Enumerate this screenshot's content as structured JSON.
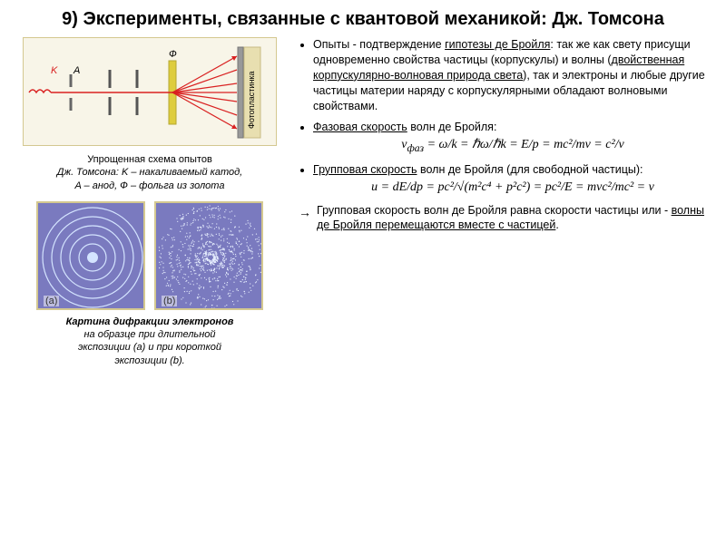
{
  "title": "9) Эксперименты, связанные с квантовой механикой: Дж. Томсона",
  "left": {
    "caption1_a": "Упрощенная схема опытов",
    "caption1_b": "Дж. Томсона: K – накаливаемый катод,",
    "caption1_c": "A – анод, Ф – фольга из золота",
    "caption2_a": "Картина дифракции электронов",
    "caption2_b": "на образце при длительной",
    "caption2_c": "экспозиции (a) и при короткой",
    "caption2_d": "экспозиции (b).",
    "pattern_a": "(a)",
    "pattern_b": "(b)",
    "schematic": {
      "label_K": "K",
      "label_A": "A",
      "label_F": "Ф",
      "label_plate": "Фотопластинка",
      "bg_color": "#f8f5e8",
      "beam_color": "#d92121",
      "slit_color": "#666666",
      "foil_color": "#decd3e"
    },
    "pattern_bg": "#7a7abf",
    "ring_color": "#d4e4ff",
    "dot_color": "#e8f0ff"
  },
  "bullets": {
    "b1_pre": "Опыты - подтверждение ",
    "b1_u1": "гипотезы де Бройля",
    "b1_mid1": ": так же как свету присущи одновременно свойства частицы (корпускулы) и волны (",
    "b1_u2": "двойственная корпускулярно-волновая природа света",
    "b1_mid2": "), так и электроны и любые другие частицы материи наряду с корпускулярными обладают волновыми свойствами.",
    "b2_u": "Фазовая скорость",
    "b2_txt": " волн де Бройля:",
    "b3_u": "Групповая скорость",
    "b3_txt": " волн де Бройля (для свободной частицы):",
    "b4_pre": "Групповая скорость волн де Бройля равна скорости частицы или - ",
    "b4_u": "волны де Бройля перемещаются вместе с частицей",
    "b4_post": "."
  },
  "formulas": {
    "phase": "v<sub>фаз</sub> = ω/k = ℏω/ℏk = E/p = mc²/mv = c²/v",
    "group": "u = dE/dp = pc²/√(m²c⁴ + p²c²) = pc²/E = mvc²/mc² = v"
  },
  "arrow": "→"
}
